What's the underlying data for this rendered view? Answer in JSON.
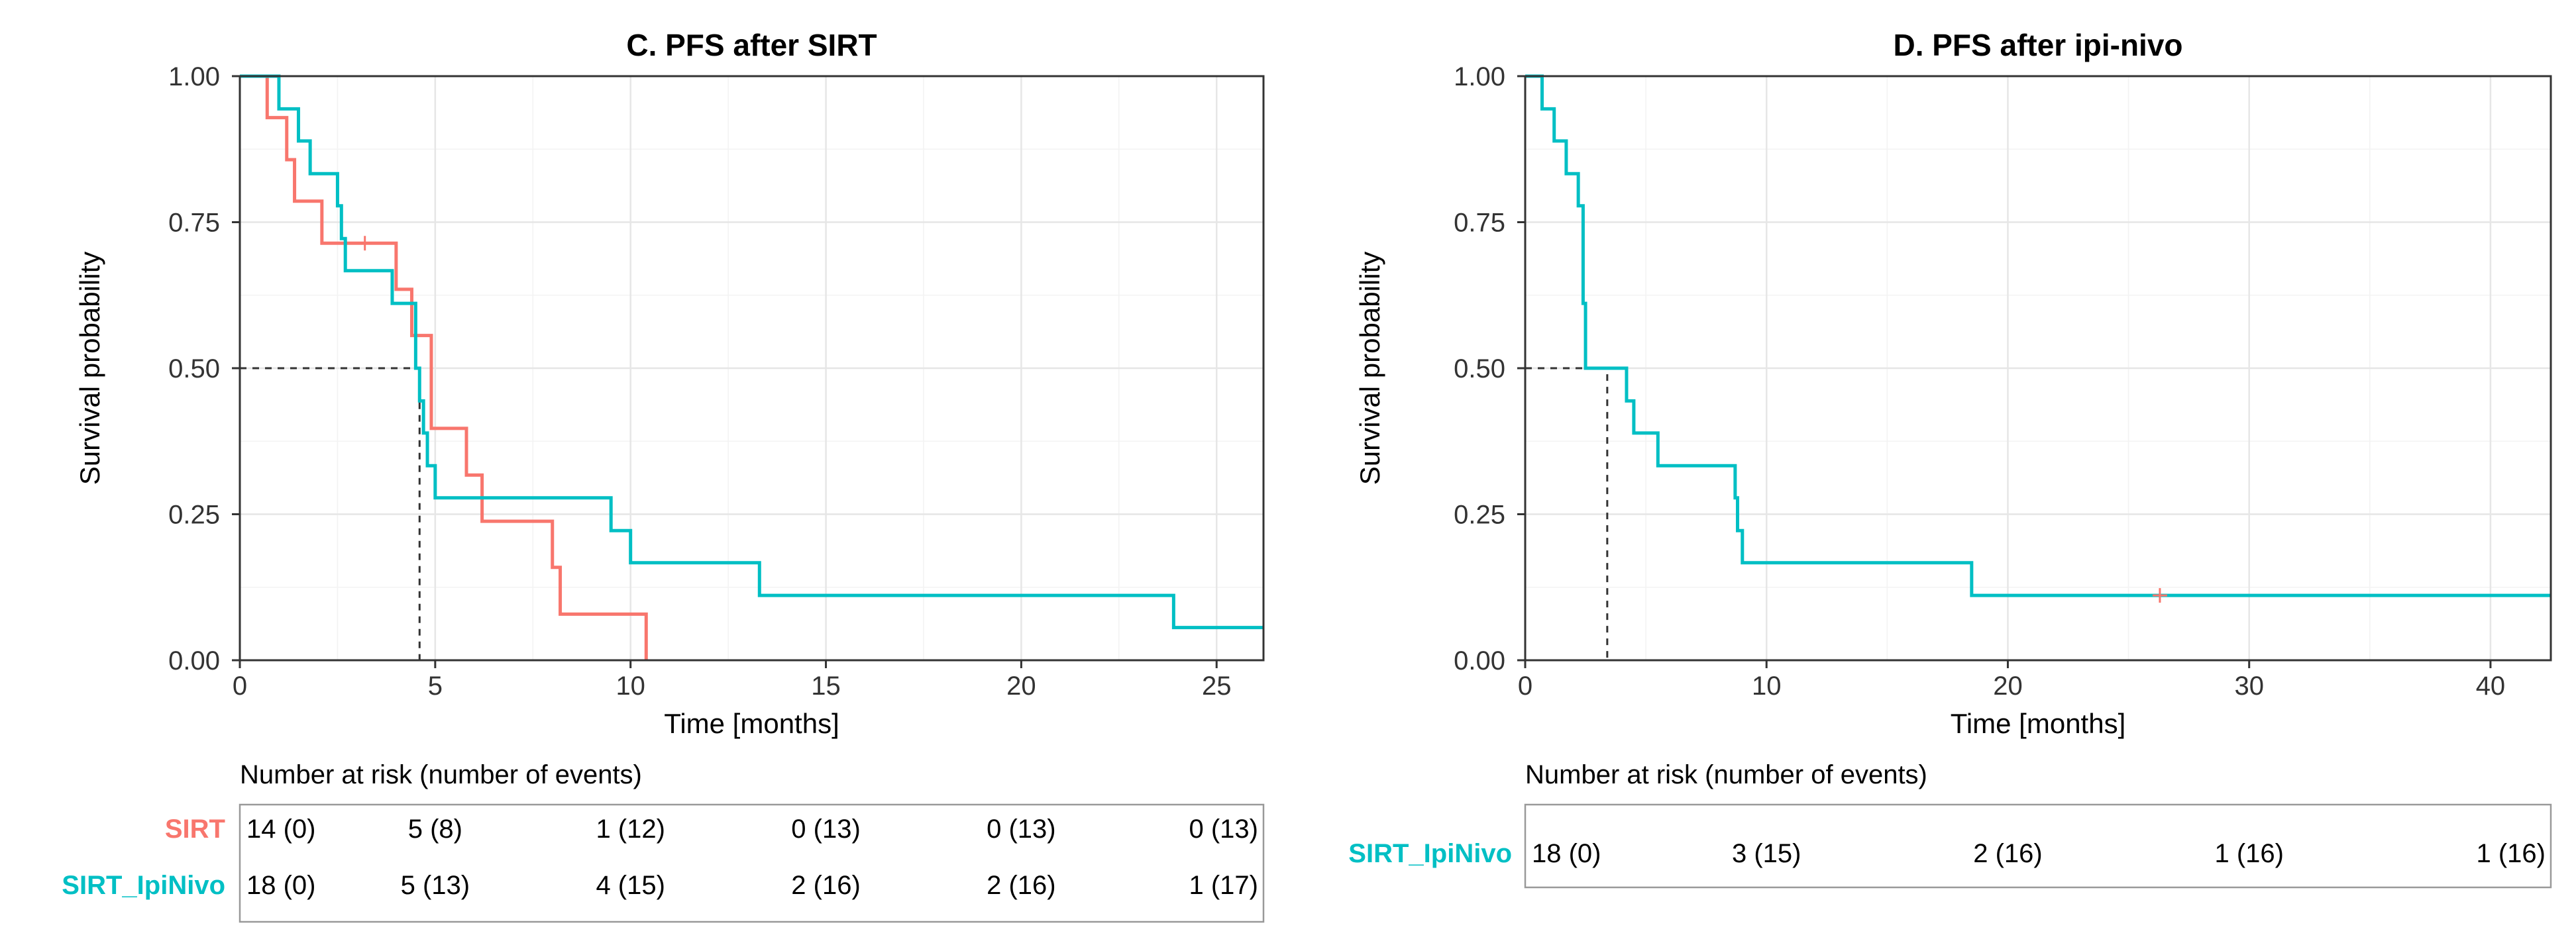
{
  "chart_data": [
    {
      "type": "line",
      "subtype": "kaplan-meier",
      "title": "C. PFS after SIRT",
      "xlabel": "Time [months]",
      "ylabel": "Survival probability",
      "xlim": [
        0,
        26.2
      ],
      "ylim": [
        0,
        1
      ],
      "x_ticks": [
        0,
        5,
        10,
        15,
        20,
        25
      ],
      "x_tick_labels": [
        "0",
        "5",
        "10",
        "15",
        "20",
        "25"
      ],
      "y_ticks": [
        0,
        0.25,
        0.5,
        0.75,
        1.0
      ],
      "y_tick_labels": [
        "0.00",
        "0.25",
        "0.50",
        "0.75",
        "1.00"
      ],
      "grid": true,
      "series": [
        {
          "name": "SIRT",
          "color": "#F8766D",
          "steps": [
            [
              0,
              1.0
            ],
            [
              0.7,
              0.929
            ],
            [
              1.2,
              0.857
            ],
            [
              1.4,
              0.786
            ],
            [
              2.1,
              0.714
            ],
            [
              4.0,
              0.635
            ],
            [
              4.4,
              0.556
            ],
            [
              4.9,
              0.397
            ],
            [
              5.8,
              0.317
            ],
            [
              6.2,
              0.238
            ],
            [
              8.0,
              0.159
            ],
            [
              8.2,
              0.079
            ],
            [
              10.4,
              0.0
            ]
          ],
          "censors": [
            [
              3.2,
              0.714
            ]
          ]
        },
        {
          "name": "SIRT_IpiNivo",
          "color": "#00BFC4",
          "steps": [
            [
              0,
              1.0
            ],
            [
              1.0,
              0.944
            ],
            [
              1.5,
              0.889
            ],
            [
              1.8,
              0.833
            ],
            [
              2.5,
              0.778
            ],
            [
              2.6,
              0.722
            ],
            [
              2.7,
              0.667
            ],
            [
              3.9,
              0.611
            ],
            [
              4.5,
              0.5
            ],
            [
              4.6,
              0.444
            ],
            [
              4.7,
              0.389
            ],
            [
              4.8,
              0.333
            ],
            [
              5.0,
              0.278
            ],
            [
              9.5,
              0.222
            ],
            [
              10.0,
              0.167
            ],
            [
              13.3,
              0.111
            ],
            [
              23.9,
              0.056
            ],
            [
              26.2,
              0.056
            ]
          ],
          "censors": []
        }
      ],
      "median_lines": [
        {
          "x": 4.6,
          "y": 0.5
        }
      ],
      "risk_table": {
        "title": "Number at risk (number of events)",
        "times": [
          0,
          5,
          10,
          15,
          20,
          25
        ],
        "rows": [
          {
            "label": "SIRT",
            "color": "#F8766D",
            "values": [
              "14 (0)",
              "5 (8)",
              "1 (12)",
              "0 (13)",
              "0 (13)",
              "0 (13)"
            ]
          },
          {
            "label": "SIRT_IpiNivo",
            "color": "#00BFC4",
            "values": [
              "18 (0)",
              "5 (13)",
              "4 (15)",
              "2 (16)",
              "2 (16)",
              "1 (17)"
            ]
          }
        ]
      }
    },
    {
      "type": "line",
      "subtype": "kaplan-meier",
      "title": "D. PFS after ipi-nivo",
      "xlabel": "Time [months]",
      "ylabel": "Survival probability",
      "xlim": [
        0,
        42.5
      ],
      "ylim": [
        0,
        1
      ],
      "x_ticks": [
        0,
        10,
        20,
        30,
        40
      ],
      "x_tick_labels": [
        "0",
        "10",
        "20",
        "30",
        "40"
      ],
      "y_ticks": [
        0,
        0.25,
        0.5,
        0.75,
        1.0
      ],
      "y_tick_labels": [
        "0.00",
        "0.25",
        "0.50",
        "0.75",
        "1.00"
      ],
      "grid": true,
      "series": [
        {
          "name": "SIRT_IpiNivo",
          "color": "#00BFC4",
          "steps": [
            [
              0,
              1.0
            ],
            [
              0.7,
              0.944
            ],
            [
              1.2,
              0.889
            ],
            [
              1.7,
              0.833
            ],
            [
              2.2,
              0.778
            ],
            [
              2.4,
              0.611
            ],
            [
              2.5,
              0.5
            ],
            [
              4.2,
              0.444
            ],
            [
              4.5,
              0.389
            ],
            [
              5.5,
              0.333
            ],
            [
              8.7,
              0.278
            ],
            [
              8.8,
              0.222
            ],
            [
              9.0,
              0.167
            ],
            [
              18.5,
              0.111
            ],
            [
              42.5,
              0.111
            ]
          ],
          "censors": [
            [
              26.3,
              0.111
            ]
          ]
        }
      ],
      "median_lines": [
        {
          "x": 3.4,
          "y": 0.5
        }
      ],
      "risk_table": {
        "title": "Number at risk (number of events)",
        "times": [
          0,
          10,
          20,
          30,
          40
        ],
        "rows": [
          {
            "label": "SIRT_IpiNivo",
            "color": "#00BFC4",
            "values": [
              "18 (0)",
              "3 (15)",
              "2 (16)",
              "1 (16)",
              "1 (16)"
            ]
          }
        ]
      }
    }
  ]
}
